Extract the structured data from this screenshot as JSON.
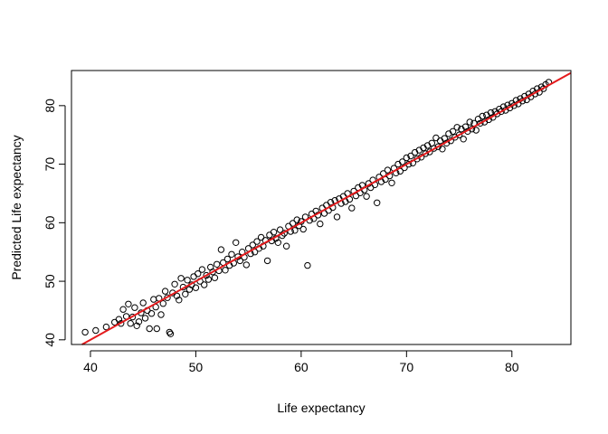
{
  "chart_data": {
    "type": "scatter",
    "title": "",
    "xlabel": "Life expectancy",
    "ylabel": "Predicted Life expectancy",
    "xlim": [
      38.2,
      85.6
    ],
    "ylim": [
      39.2,
      86.0
    ],
    "xticks": [
      40,
      50,
      60,
      70,
      80
    ],
    "yticks": [
      40,
      50,
      60,
      70,
      80
    ],
    "x_tick_labels": [
      "40",
      "50",
      "60",
      "70",
      "80"
    ],
    "y_tick_labels": [
      "40",
      "50",
      "60",
      "70",
      "80"
    ],
    "grid": false,
    "legend": "none",
    "point_color": "#000000",
    "line_color": "#e41a1c",
    "reference_line": {
      "slope": 1,
      "intercept": 0
    },
    "points": [
      [
        39.5,
        41.3
      ],
      [
        40.5,
        41.6
      ],
      [
        41.5,
        42.2
      ],
      [
        42.3,
        43.0
      ],
      [
        42.7,
        43.5
      ],
      [
        42.9,
        42.8
      ],
      [
        43.1,
        45.2
      ],
      [
        43.4,
        44.0
      ],
      [
        43.6,
        46.1
      ],
      [
        43.8,
        42.8
      ],
      [
        44.0,
        43.9
      ],
      [
        44.2,
        45.5
      ],
      [
        44.4,
        42.4
      ],
      [
        44.6,
        43.1
      ],
      [
        44.8,
        44.6
      ],
      [
        45.0,
        46.3
      ],
      [
        45.2,
        43.7
      ],
      [
        45.4,
        45.0
      ],
      [
        45.6,
        41.9
      ],
      [
        45.8,
        44.5
      ],
      [
        46.0,
        46.9
      ],
      [
        46.2,
        45.6
      ],
      [
        46.3,
        41.9
      ],
      [
        46.5,
        47.1
      ],
      [
        46.7,
        44.3
      ],
      [
        46.9,
        46.2
      ],
      [
        47.1,
        48.3
      ],
      [
        47.3,
        47.2
      ],
      [
        47.5,
        41.3
      ],
      [
        47.6,
        41.0
      ],
      [
        47.8,
        48.0
      ],
      [
        48.0,
        49.5
      ],
      [
        48.2,
        47.5
      ],
      [
        48.4,
        46.8
      ],
      [
        48.6,
        50.5
      ],
      [
        48.8,
        49.0
      ],
      [
        49.0,
        47.8
      ],
      [
        49.2,
        50.2
      ],
      [
        49.4,
        48.6
      ],
      [
        49.6,
        49.4
      ],
      [
        49.8,
        50.8
      ],
      [
        50.0,
        48.9
      ],
      [
        50.2,
        51.3
      ],
      [
        50.4,
        50.0
      ],
      [
        50.6,
        52.0
      ],
      [
        50.8,
        49.4
      ],
      [
        51.0,
        51.0
      ],
      [
        51.2,
        50.3
      ],
      [
        51.4,
        52.4
      ],
      [
        51.6,
        51.6
      ],
      [
        51.8,
        50.6
      ],
      [
        52.0,
        52.9
      ],
      [
        52.2,
        51.8
      ],
      [
        52.4,
        55.4
      ],
      [
        52.6,
        53.2
      ],
      [
        52.8,
        51.9
      ],
      [
        53.0,
        53.8
      ],
      [
        53.2,
        52.7
      ],
      [
        53.4,
        54.6
      ],
      [
        53.6,
        53.1
      ],
      [
        53.8,
        56.6
      ],
      [
        54.0,
        54.2
      ],
      [
        54.2,
        53.5
      ],
      [
        54.4,
        55.0
      ],
      [
        54.6,
        54.1
      ],
      [
        54.8,
        52.8
      ],
      [
        55.0,
        55.6
      ],
      [
        55.2,
        54.7
      ],
      [
        55.4,
        56.2
      ],
      [
        55.6,
        55.0
      ],
      [
        55.8,
        56.8
      ],
      [
        56.0,
        55.6
      ],
      [
        56.2,
        57.5
      ],
      [
        56.4,
        56.0
      ],
      [
        56.6,
        57.0
      ],
      [
        56.8,
        53.5
      ],
      [
        57.0,
        57.9
      ],
      [
        57.2,
        56.9
      ],
      [
        57.4,
        58.4
      ],
      [
        57.6,
        57.3
      ],
      [
        57.8,
        56.6
      ],
      [
        58.0,
        58.8
      ],
      [
        58.2,
        57.8
      ],
      [
        58.4,
        58.2
      ],
      [
        58.6,
        56.0
      ],
      [
        58.8,
        59.4
      ],
      [
        59.0,
        58.5
      ],
      [
        59.2,
        59.9
      ],
      [
        59.4,
        58.7
      ],
      [
        59.6,
        60.5
      ],
      [
        59.8,
        59.5
      ],
      [
        60.0,
        60.2
      ],
      [
        60.2,
        58.9
      ],
      [
        60.4,
        61.0
      ],
      [
        60.6,
        52.7
      ],
      [
        60.8,
        60.4
      ],
      [
        61.0,
        61.5
      ],
      [
        61.2,
        60.7
      ],
      [
        61.4,
        62.0
      ],
      [
        61.6,
        61.3
      ],
      [
        61.8,
        59.8
      ],
      [
        62.0,
        62.5
      ],
      [
        62.2,
        61.6
      ],
      [
        62.4,
        63.0
      ],
      [
        62.6,
        62.1
      ],
      [
        62.8,
        63.5
      ],
      [
        63.0,
        62.6
      ],
      [
        63.2,
        63.8
      ],
      [
        63.4,
        61.0
      ],
      [
        63.6,
        64.1
      ],
      [
        63.8,
        63.3
      ],
      [
        64.0,
        64.5
      ],
      [
        64.2,
        63.6
      ],
      [
        64.4,
        65.0
      ],
      [
        64.6,
        64.0
      ],
      [
        64.8,
        62.5
      ],
      [
        65.0,
        65.4
      ],
      [
        65.2,
        64.6
      ],
      [
        65.4,
        66.0
      ],
      [
        65.6,
        65.1
      ],
      [
        65.8,
        66.4
      ],
      [
        66.0,
        65.6
      ],
      [
        66.2,
        64.5
      ],
      [
        66.4,
        66.7
      ],
      [
        66.6,
        66.0
      ],
      [
        66.8,
        67.3
      ],
      [
        67.0,
        66.5
      ],
      [
        67.2,
        63.4
      ],
      [
        67.4,
        67.8
      ],
      [
        67.6,
        67.0
      ],
      [
        67.8,
        68.4
      ],
      [
        68.0,
        67.4
      ],
      [
        68.2,
        69.0
      ],
      [
        68.4,
        68.0
      ],
      [
        68.6,
        66.8
      ],
      [
        68.8,
        69.3
      ],
      [
        69.0,
        68.5
      ],
      [
        69.2,
        70.0
      ],
      [
        69.4,
        68.8
      ],
      [
        69.6,
        70.4
      ],
      [
        69.8,
        69.4
      ],
      [
        70.0,
        71.1
      ],
      [
        70.2,
        70.0
      ],
      [
        70.4,
        71.4
      ],
      [
        70.6,
        70.2
      ],
      [
        70.8,
        72.0
      ],
      [
        71.0,
        70.9
      ],
      [
        71.2,
        72.4
      ],
      [
        71.4,
        71.2
      ],
      [
        71.6,
        72.8
      ],
      [
        71.8,
        71.8
      ],
      [
        72.0,
        73.2
      ],
      [
        72.2,
        72.1
      ],
      [
        72.4,
        73.6
      ],
      [
        72.6,
        72.7
      ],
      [
        72.8,
        74.5
      ],
      [
        73.0,
        73.0
      ],
      [
        73.2,
        74.0
      ],
      [
        73.4,
        72.6
      ],
      [
        73.6,
        74.4
      ],
      [
        73.8,
        73.6
      ],
      [
        74.0,
        75.2
      ],
      [
        74.2,
        74.0
      ],
      [
        74.4,
        75.6
      ],
      [
        74.6,
        74.6
      ],
      [
        74.8,
        76.3
      ],
      [
        75.0,
        75.0
      ],
      [
        75.2,
        76.0
      ],
      [
        75.4,
        74.3
      ],
      [
        75.6,
        76.4
      ],
      [
        75.8,
        75.6
      ],
      [
        76.0,
        77.2
      ],
      [
        76.2,
        76.0
      ],
      [
        76.4,
        77.0
      ],
      [
        76.6,
        75.8
      ],
      [
        76.8,
        77.7
      ],
      [
        77.0,
        77.0
      ],
      [
        77.2,
        78.2
      ],
      [
        77.4,
        77.2
      ],
      [
        77.6,
        78.4
      ],
      [
        77.8,
        77.6
      ],
      [
        78.0,
        78.8
      ],
      [
        78.2,
        78.0
      ],
      [
        78.4,
        79.0
      ],
      [
        78.6,
        78.6
      ],
      [
        78.8,
        79.4
      ],
      [
        79.0,
        79.0
      ],
      [
        79.2,
        79.8
      ],
      [
        79.4,
        79.2
      ],
      [
        79.6,
        80.1
      ],
      [
        79.8,
        79.6
      ],
      [
        80.0,
        80.4
      ],
      [
        80.2,
        80.0
      ],
      [
        80.4,
        80.9
      ],
      [
        80.6,
        80.3
      ],
      [
        80.8,
        81.2
      ],
      [
        81.0,
        80.8
      ],
      [
        81.2,
        81.6
      ],
      [
        81.4,
        81.0
      ],
      [
        81.6,
        82.0
      ],
      [
        81.8,
        81.5
      ],
      [
        82.0,
        82.5
      ],
      [
        82.2,
        82.0
      ],
      [
        82.4,
        82.9
      ],
      [
        82.6,
        82.3
      ],
      [
        82.8,
        83.2
      ],
      [
        83.0,
        82.9
      ],
      [
        83.2,
        83.6
      ],
      [
        83.5,
        84.0
      ]
    ]
  }
}
